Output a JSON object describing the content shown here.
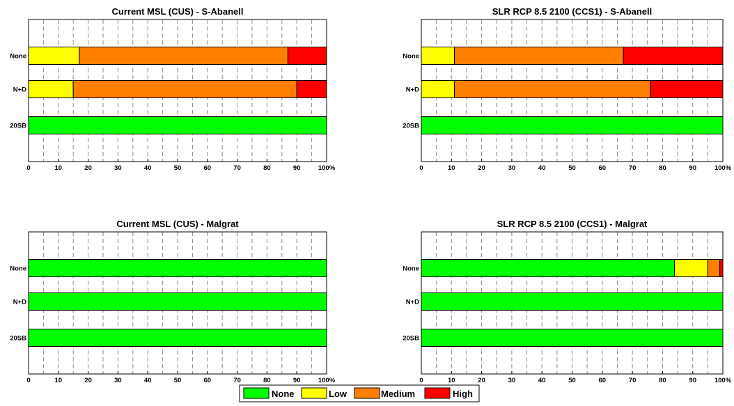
{
  "legend": {
    "items": [
      {
        "label": "None",
        "color": "#00ff00"
      },
      {
        "label": "Low",
        "color": "#ffff00"
      },
      {
        "label": "Medium",
        "color": "#ff8000"
      },
      {
        "label": "High",
        "color": "#ff0000"
      }
    ]
  },
  "chart_data": [
    {
      "type": "bar",
      "orientation": "horizontal",
      "stacked": true,
      "title": "Current MSL (CUS) - S-Abanell",
      "categories": [
        "None",
        "N+D",
        "20SB"
      ],
      "x_tick_labels": [
        "0",
        "10",
        "20",
        "30",
        "40",
        "50",
        "60",
        "70",
        "80",
        "90",
        "100%"
      ],
      "xlim": [
        0,
        100
      ],
      "grid": "vertical dashed",
      "series": [
        {
          "name": "None",
          "color": "#00ff00",
          "values": [
            0,
            0,
            100
          ]
        },
        {
          "name": "Low",
          "color": "#ffff00",
          "values": [
            17,
            15,
            0
          ]
        },
        {
          "name": "Medium",
          "color": "#ff8000",
          "values": [
            70,
            75,
            0
          ]
        },
        {
          "name": "High",
          "color": "#ff0000",
          "values": [
            13,
            10,
            0
          ]
        }
      ]
    },
    {
      "type": "bar",
      "orientation": "horizontal",
      "stacked": true,
      "title": "SLR RCP 8.5 2100 (CCS1) - S-Abanell",
      "categories": [
        "None",
        "N+D",
        "20SB"
      ],
      "x_tick_labels": [
        "0",
        "10",
        "20",
        "30",
        "40",
        "50",
        "60",
        "70",
        "80",
        "90",
        "100%"
      ],
      "xlim": [
        0,
        100
      ],
      "grid": "vertical dashed",
      "series": [
        {
          "name": "None",
          "color": "#00ff00",
          "values": [
            0,
            0,
            100
          ]
        },
        {
          "name": "Low",
          "color": "#ffff00",
          "values": [
            11,
            11,
            0
          ]
        },
        {
          "name": "Medium",
          "color": "#ff8000",
          "values": [
            56,
            65,
            0
          ]
        },
        {
          "name": "High",
          "color": "#ff0000",
          "values": [
            33,
            24,
            0
          ]
        }
      ]
    },
    {
      "type": "bar",
      "orientation": "horizontal",
      "stacked": true,
      "title": "Current MSL (CUS) - Malgrat",
      "categories": [
        "None",
        "N+D",
        "20SB"
      ],
      "x_tick_labels": [
        "0",
        "10",
        "20",
        "30",
        "40",
        "50",
        "60",
        "70",
        "80",
        "90",
        "100%"
      ],
      "xlim": [
        0,
        100
      ],
      "grid": "vertical dashed",
      "series": [
        {
          "name": "None",
          "color": "#00ff00",
          "values": [
            100,
            100,
            100
          ]
        },
        {
          "name": "Low",
          "color": "#ffff00",
          "values": [
            0,
            0,
            0
          ]
        },
        {
          "name": "Medium",
          "color": "#ff8000",
          "values": [
            0,
            0,
            0
          ]
        },
        {
          "name": "High",
          "color": "#ff0000",
          "values": [
            0,
            0,
            0
          ]
        }
      ]
    },
    {
      "type": "bar",
      "orientation": "horizontal",
      "stacked": true,
      "title": "SLR RCP 8.5 2100 (CCS1) - Malgrat",
      "categories": [
        "None",
        "N+D",
        "20SB"
      ],
      "x_tick_labels": [
        "0",
        "10",
        "20",
        "30",
        "40",
        "50",
        "60",
        "70",
        "80",
        "90",
        "100%"
      ],
      "xlim": [
        0,
        100
      ],
      "grid": "vertical dashed",
      "series": [
        {
          "name": "None",
          "color": "#00ff00",
          "values": [
            84,
            100,
            100
          ]
        },
        {
          "name": "Low",
          "color": "#ffff00",
          "values": [
            11,
            0,
            0
          ]
        },
        {
          "name": "Medium",
          "color": "#ff8000",
          "values": [
            4,
            0,
            0
          ]
        },
        {
          "name": "High",
          "color": "#ff0000",
          "values": [
            1,
            0,
            0
          ]
        }
      ]
    }
  ]
}
